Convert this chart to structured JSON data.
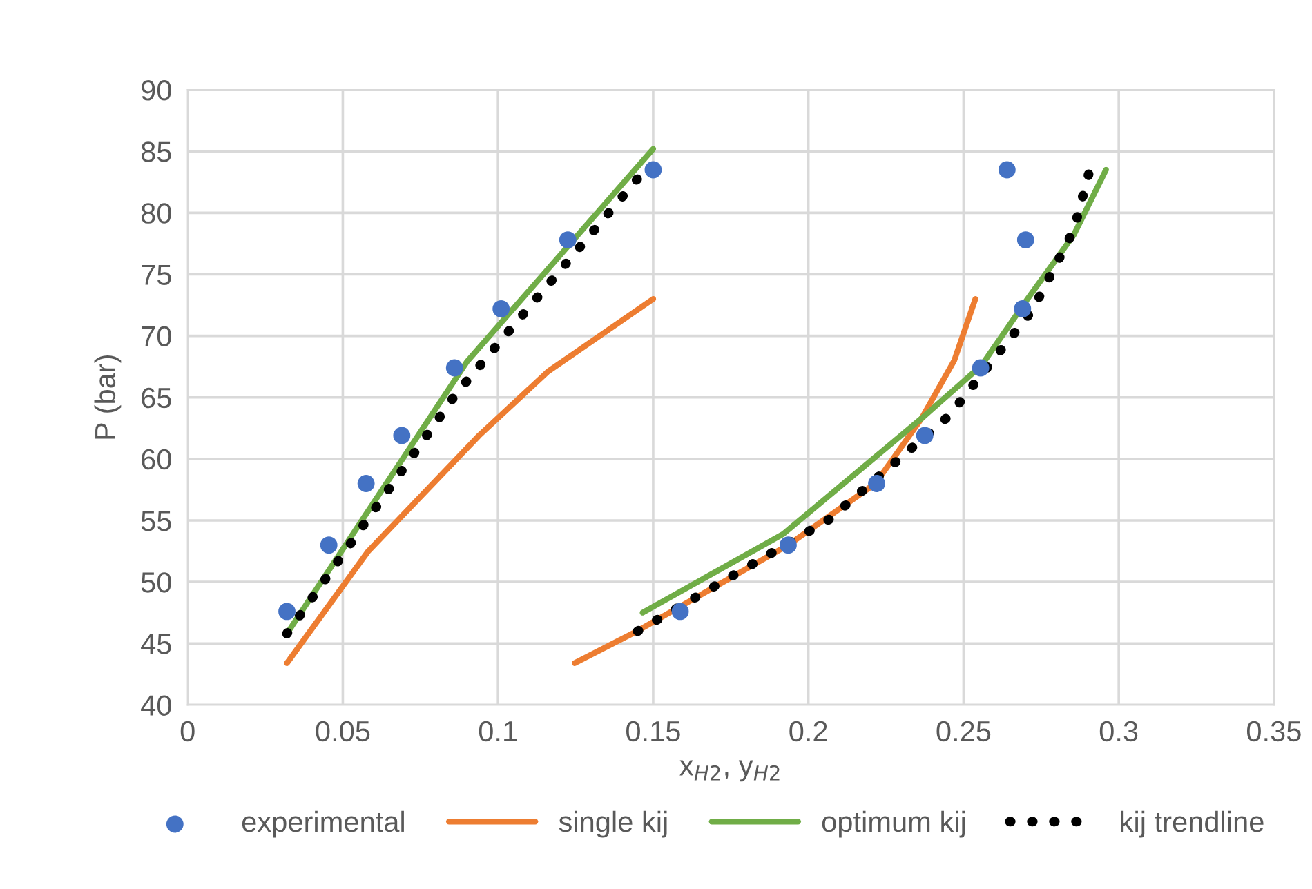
{
  "chart_data": {
    "type": "line",
    "xlabel": "x$_{H2}$, y$_{H2}$",
    "ylabel": "P (bar)",
    "xlim": [
      0,
      0.35
    ],
    "xticks": [
      0,
      0.05,
      0.1,
      0.15,
      0.2,
      0.25,
      0.3,
      0.35
    ],
    "ylim": [
      40,
      90
    ],
    "yticks": [
      40,
      45,
      50,
      55,
      60,
      65,
      70,
      75,
      80,
      85,
      90
    ],
    "grid": true,
    "legend": "bottom",
    "series": [
      {
        "name": "experimental",
        "type": "scatter",
        "marker": "circle",
        "color": "#4472c4",
        "x": [
          0.032,
          0.0455,
          0.0575,
          0.069,
          0.086,
          0.101,
          0.1225,
          0.15,
          0.1587,
          0.1935,
          0.222,
          0.2375,
          0.2555,
          0.269,
          0.27,
          0.264
        ],
        "values": [
          47.6,
          53.0,
          58.0,
          61.9,
          67.4,
          72.2,
          77.8,
          83.5,
          47.6,
          53.0,
          58.0,
          61.9,
          67.4,
          72.2,
          77.8,
          83.5
        ]
      },
      {
        "name": "single kij",
        "line_style": "solid",
        "color": "#ed7d31",
        "x": [
          0.032,
          0.0582,
          0.0939,
          0.1161,
          0.15,
          null,
          0.1247,
          0.1448,
          0.1935,
          0.2216,
          0.2365,
          0.247,
          0.2538
        ],
        "values": [
          43.4,
          52.5,
          61.9,
          67.1,
          73.0,
          null,
          43.4,
          46.0,
          53.0,
          58.0,
          63.3,
          68.0,
          73.0
        ]
      },
      {
        "name": "optimum kij",
        "line_style": "solid",
        "color": "#70ad47",
        "x": [
          0.032,
          0.09,
          0.15,
          null,
          0.1466,
          0.1919,
          0.2365,
          0.2558,
          0.2706,
          0.2855,
          0.2959
        ],
        "values": [
          45.8,
          67.9,
          85.2,
          null,
          47.5,
          53.9,
          63.3,
          67.6,
          73.0,
          78.2,
          83.5
        ]
      },
      {
        "name": "kij trendline",
        "line_style": "dotted",
        "color": "#000000",
        "x": [
          0.032,
          0.0865,
          0.1474,
          null,
          0.145,
          0.2068,
          0.2453,
          0.2722,
          0.2855,
          0.291
        ],
        "values": [
          45.8,
          65.3,
          83.5,
          null,
          46.0,
          55.1,
          63.5,
          72.1,
          78.6,
          83.8
        ]
      }
    ]
  }
}
